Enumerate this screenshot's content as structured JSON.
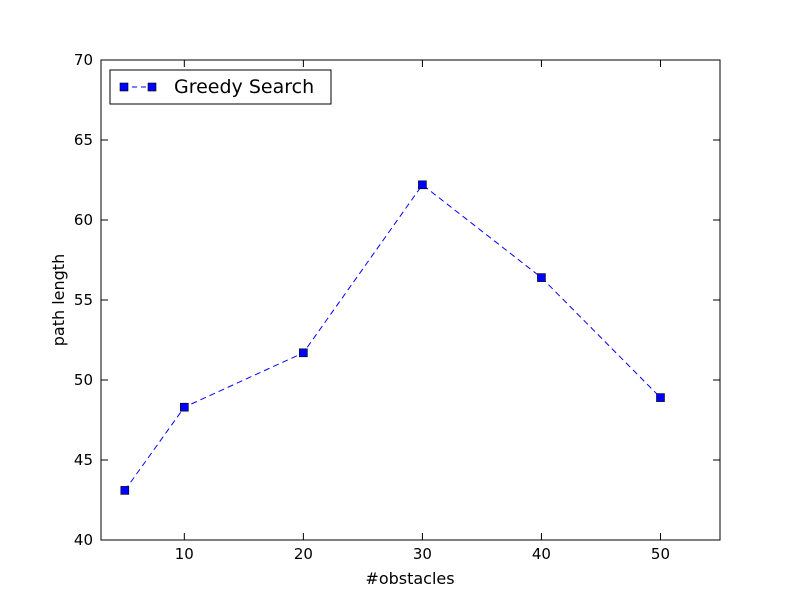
{
  "chart_data": {
    "type": "line",
    "title": "",
    "xlabel": "#obstacles",
    "ylabel": "path length",
    "xlim": [
      3,
      55
    ],
    "ylim": [
      40,
      70
    ],
    "x_ticks": [
      10,
      20,
      30,
      40,
      50
    ],
    "y_ticks": [
      40,
      45,
      50,
      55,
      60,
      65,
      70
    ],
    "grid": false,
    "legend_position": "top-left",
    "series": [
      {
        "name": "Greedy Search",
        "color": "#0000ff",
        "line_style": "dashed",
        "marker": "square",
        "x": [
          5,
          10,
          20,
          30,
          40,
          50
        ],
        "y": [
          43.1,
          48.3,
          51.7,
          62.2,
          56.4,
          48.9
        ]
      }
    ]
  }
}
